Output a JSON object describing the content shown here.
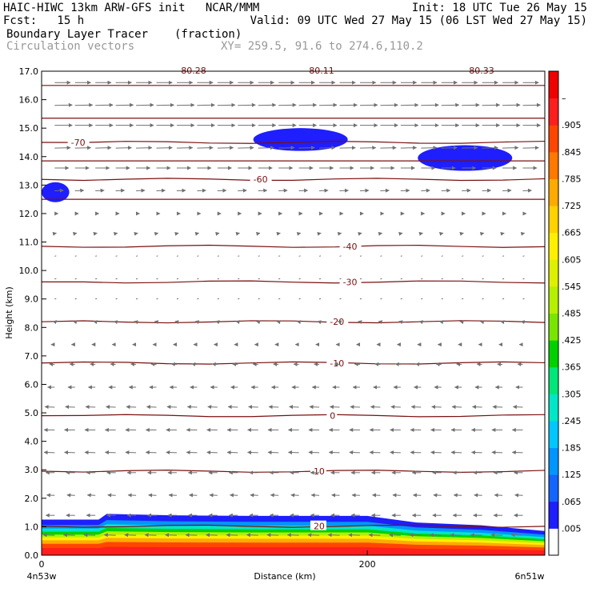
{
  "header": {
    "line1_left": "HAIC-HIWC 13km ARW-GFS init   NCAR/MMM",
    "line1_right": "Init: 18 UTC Tue 26 May 15",
    "line2_left": "Fcst:   15 h",
    "line2_right": "Valid: 09 UTC Wed 27 May 15 (06 LST Wed 27 May 15)",
    "line3_left": "Boundary Layer Tracer",
    "line3_mid": "(fraction)",
    "line4_left": "Circulation vectors",
    "line4_mid": "XY= 259.5, 91.6 to 274.6,110.2"
  },
  "chart_data": {
    "type": "heatmap",
    "xlabel": "Distance (km)",
    "ylabel": "Height (km)",
    "xlim": [
      0,
      309
    ],
    "ylim": [
      0,
      17
    ],
    "x_ticks": [
      {
        "v": 0,
        "label": "0"
      },
      {
        "v": 200,
        "label": "200"
      }
    ],
    "x_end_labels": {
      "left": "4n53w",
      "right": "6n51w"
    },
    "y_ticks": [
      "0.0",
      "1.0",
      "2.0",
      "3.0",
      "4.0",
      "5.0",
      "6.0",
      "7.0",
      "8.0",
      "9.0",
      "10.0",
      "11.0",
      "12.0",
      "13.0",
      "14.0",
      "15.0",
      "16.0",
      "17.0"
    ],
    "colorbar": {
      "labels": [
        ".005",
        ".065",
        ".125",
        ".185",
        ".245",
        ".305",
        ".365",
        ".425",
        ".485",
        ".545",
        ".605",
        ".665",
        ".725",
        ".785",
        ".845",
        ".905",
        "–"
      ],
      "colors": [
        "#ffffff",
        "#1e1eff",
        "#1464ff",
        "#0096ff",
        "#00c8ff",
        "#00e6c8",
        "#00e678",
        "#00d200",
        "#78e600",
        "#b4f000",
        "#dcf000",
        "#fff000",
        "#ffd200",
        "#ffaa00",
        "#ff7800",
        "#ff4600",
        "#ff1e1e",
        "#f00000"
      ]
    },
    "contours": [
      {
        "label": "20",
        "y": 1.02,
        "lx": 167
      },
      {
        "label": "10",
        "y": 2.95,
        "lx": 167
      },
      {
        "label": "0",
        "y": 4.9,
        "lx": 177
      },
      {
        "label": "-10",
        "y": 6.75,
        "lx": 177
      },
      {
        "label": "-20",
        "y": 8.2,
        "lx": 177
      },
      {
        "label": "-30",
        "y": 9.6,
        "lx": 185
      },
      {
        "label": "-40",
        "y": 10.85,
        "lx": 185
      },
      {
        "label": "-60",
        "y": 13.2,
        "lx": 130
      },
      {
        "label": "-70",
        "y": 14.5,
        "lx": 18
      }
    ],
    "top_labels": [
      "-80.28",
      "-80.11",
      "-80.33"
    ],
    "tracer_patches": [
      {
        "x0": 130,
        "x1": 188,
        "y0": 14.2,
        "y1": 15.0,
        "value": 0.065
      },
      {
        "x0": 231,
        "x1": 289,
        "y0": 13.5,
        "y1": 14.4,
        "value": 0.065
      },
      {
        "x0": 0,
        "x1": 17,
        "y0": 12.4,
        "y1": 13.1,
        "value": 0.065
      }
    ],
    "bl_top_profile": [
      {
        "x": 0,
        "y": 1.25
      },
      {
        "x": 35,
        "y": 1.25
      },
      {
        "x": 40,
        "y": 1.45
      },
      {
        "x": 80,
        "y": 1.4
      },
      {
        "x": 130,
        "y": 1.38
      },
      {
        "x": 200,
        "y": 1.38
      },
      {
        "x": 230,
        "y": 1.15
      },
      {
        "x": 270,
        "y": 1.05
      },
      {
        "x": 309,
        "y": 0.85
      }
    ],
    "vector_rows_km": [
      16.6,
      15.8,
      15.1,
      14.3,
      13.6,
      12.8,
      12.0,
      11.3,
      10.5,
      9.7,
      9.0,
      8.2,
      7.4,
      6.7,
      5.9,
      5.2,
      4.4,
      3.6,
      2.9,
      2.1,
      1.4,
      0.7
    ],
    "vector_u": [
      0.9,
      1.0,
      1.0,
      0.9,
      0.8,
      0.5,
      0.2,
      0.1,
      0.05,
      0.0,
      -0.05,
      -0.1,
      -0.2,
      -0.3,
      -0.4,
      -0.55,
      -0.6,
      -0.6,
      -0.5,
      -0.45,
      -0.5,
      -0.65
    ]
  }
}
